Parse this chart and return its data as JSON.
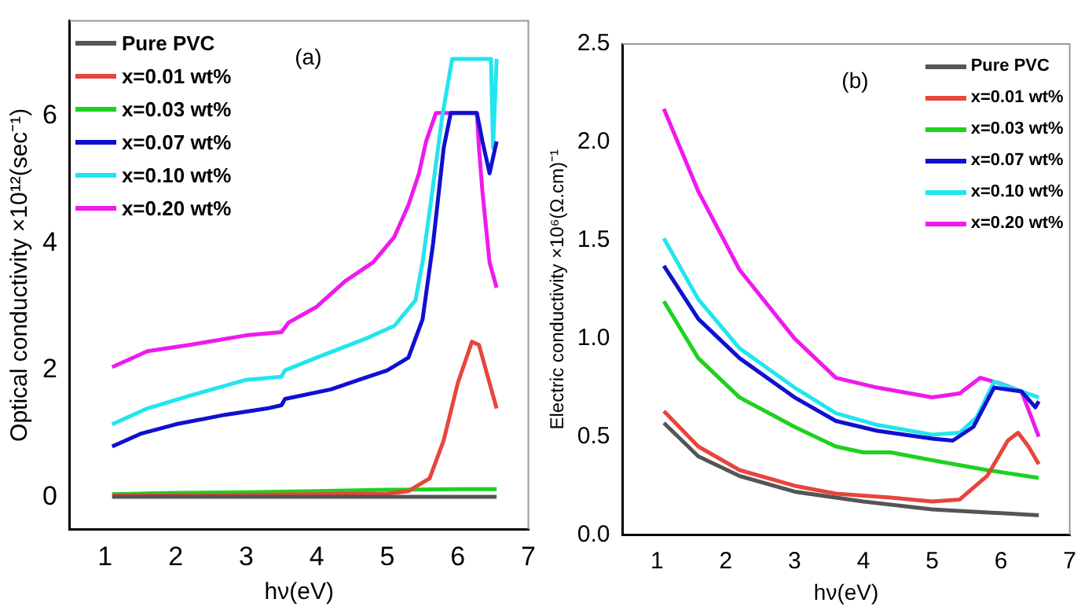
{
  "chart_data": [
    {
      "type": "line",
      "annotations": [
        "(a)"
      ],
      "xlabel": "hν(eV)",
      "ylabel": "Optical conductivity ×10¹²(sec⁻¹)",
      "xlim": [
        0.5,
        7
      ],
      "xticks": [
        1,
        2,
        3,
        4,
        5,
        6,
        7
      ],
      "ylim": [
        -0.5,
        7.5
      ],
      "yticks": [
        0,
        2,
        4,
        6
      ],
      "legend": "top left",
      "grid": false,
      "series": [
        {
          "name": "Pure PVC",
          "color": "#555555",
          "x": [
            1.1,
            2,
            3,
            4,
            5,
            6,
            6.55
          ],
          "values": [
            0.01,
            0.01,
            0.01,
            0.01,
            0.01,
            0.01,
            0.01
          ]
        },
        {
          "name": "x=0.01 wt%",
          "color": "#e8453c",
          "x": [
            1.1,
            2,
            3,
            4,
            5,
            5.3,
            5.6,
            5.8,
            6,
            6.2,
            6.3,
            6.4,
            6.55
          ],
          "values": [
            0.03,
            0.03,
            0.04,
            0.05,
            0.06,
            0.1,
            0.3,
            0.9,
            1.8,
            2.45,
            2.4,
            2,
            1.4
          ]
        },
        {
          "name": "x=0.03 wt%",
          "color": "#1fd11f",
          "x": [
            1.1,
            2,
            3,
            4,
            5,
            6,
            6.55
          ],
          "values": [
            0.05,
            0.07,
            0.08,
            0.1,
            0.12,
            0.13,
            0.13
          ]
        },
        {
          "name": "x=0.07 wt%",
          "color": "#1010d0",
          "x": [
            1.1,
            1.5,
            2,
            2.7,
            3.3,
            3.5,
            3.55,
            4.2,
            4.6,
            5,
            5.3,
            5.5,
            5.65,
            5.8,
            5.9,
            6.27,
            6.35,
            6.45,
            6.55
          ],
          "values": [
            0.8,
            1,
            1.15,
            1.3,
            1.4,
            1.45,
            1.55,
            1.7,
            1.85,
            2,
            2.2,
            2.8,
            4,
            5.5,
            6.05,
            6.05,
            5.6,
            5.1,
            5.6
          ]
        },
        {
          "name": "x=0.10 wt%",
          "color": "#22e5ee",
          "x": [
            1.1,
            1.6,
            2.2,
            3,
            3.5,
            3.55,
            4,
            4.7,
            5.1,
            5.4,
            5.5,
            5.6,
            5.78,
            5.92,
            6.47,
            6.5,
            6.55
          ],
          "values": [
            1.15,
            1.4,
            1.6,
            1.85,
            1.9,
            2,
            2.2,
            2.5,
            2.7,
            3.1,
            3.7,
            4.5,
            6,
            6.9,
            6.9,
            5.5,
            6.9
          ]
        },
        {
          "name": "x=0.20 wt%",
          "color": "#ee1aee",
          "x": [
            1.1,
            1.6,
            2.2,
            3,
            3.5,
            3.6,
            4,
            4.4,
            4.8,
            5.1,
            5.3,
            5.45,
            5.55,
            5.69,
            6.27,
            6.3,
            6.35,
            6.45,
            6.55
          ],
          "values": [
            2.05,
            2.3,
            2.4,
            2.55,
            2.6,
            2.75,
            3,
            3.4,
            3.7,
            4.1,
            4.6,
            5.1,
            5.6,
            6.05,
            6.05,
            5.5,
            4.8,
            3.7,
            3.3
          ]
        }
      ]
    },
    {
      "type": "line",
      "annotations": [
        "(b)"
      ],
      "xlabel": "hν(eV)",
      "ylabel": "Electric conductivity ×10⁶(Ω.cm)⁻¹",
      "xlim": [
        0.5,
        7
      ],
      "xticks": [
        1,
        2,
        3,
        4,
        5,
        6,
        7
      ],
      "ylim": [
        0,
        2.5
      ],
      "yticks": [
        {
          "value": 0,
          "label": "0.0"
        },
        0.5,
        {
          "value": 1,
          "label": "1.0"
        },
        1.5,
        {
          "value": 2,
          "label": "2.0"
        },
        2.5
      ],
      "legend": "top right",
      "grid": false,
      "series": [
        {
          "name": "Pure PVC",
          "color": "#555555",
          "x": [
            1.1,
            1.6,
            2.2,
            3,
            4,
            5,
            5.5,
            6.55
          ],
          "values": [
            0.57,
            0.4,
            0.3,
            0.22,
            0.17,
            0.13,
            0.12,
            0.1
          ]
        },
        {
          "name": "x=0.01 wt%",
          "color": "#e8453c",
          "x": [
            1.1,
            1.6,
            2.2,
            3,
            3.6,
            4.4,
            5,
            5.4,
            5.8,
            6.1,
            6.25,
            6.4,
            6.55
          ],
          "values": [
            0.63,
            0.45,
            0.33,
            0.25,
            0.21,
            0.19,
            0.17,
            0.18,
            0.3,
            0.48,
            0.52,
            0.45,
            0.36
          ]
        },
        {
          "name": "x=0.03 wt%",
          "color": "#1fd11f",
          "x": [
            1.1,
            1.6,
            2.2,
            3,
            3.6,
            4,
            4.4,
            5,
            5.8,
            6.55
          ],
          "values": [
            1.19,
            0.9,
            0.7,
            0.55,
            0.45,
            0.42,
            0.42,
            0.38,
            0.33,
            0.29
          ]
        },
        {
          "name": "x=0.07 wt%",
          "color": "#1010d0",
          "x": [
            1.1,
            1.6,
            2.2,
            3,
            3.6,
            4.2,
            5,
            5.3,
            5.6,
            5.9,
            6.3,
            6.5,
            6.55
          ],
          "values": [
            1.37,
            1.1,
            0.9,
            0.7,
            0.58,
            0.53,
            0.49,
            0.48,
            0.55,
            0.75,
            0.73,
            0.65,
            0.68
          ]
        },
        {
          "name": "x=0.10 wt%",
          "color": "#22e5ee",
          "x": [
            1.1,
            1.6,
            2.2,
            3,
            3.6,
            4.2,
            5,
            5.4,
            5.65,
            5.9,
            6.3,
            6.55
          ],
          "values": [
            1.51,
            1.2,
            0.95,
            0.75,
            0.62,
            0.56,
            0.51,
            0.52,
            0.6,
            0.78,
            0.73,
            0.7
          ]
        },
        {
          "name": "x=0.20 wt%",
          "color": "#ee1aee",
          "x": [
            1.1,
            1.6,
            2.2,
            3,
            3.6,
            4.2,
            5,
            5.4,
            5.7,
            6,
            6.3,
            6.55
          ],
          "values": [
            2.17,
            1.75,
            1.35,
            1,
            0.8,
            0.75,
            0.7,
            0.72,
            0.8,
            0.77,
            0.73,
            0.5
          ]
        }
      ]
    }
  ]
}
